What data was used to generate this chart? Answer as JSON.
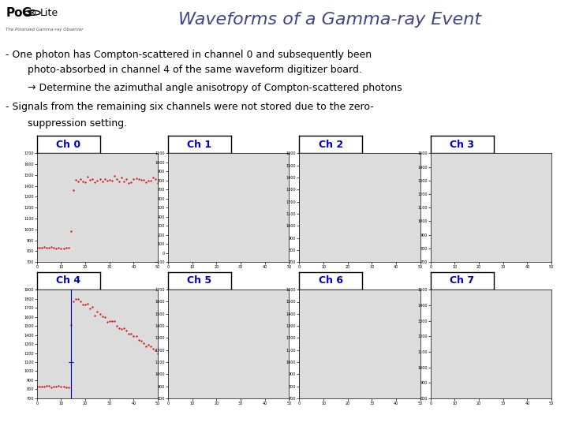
{
  "title": "Waveforms of a Gamma-ray Event",
  "text_lines": [
    [
      "- One photon has Compton-scattered in channel 0 and subsequently been",
      0.01
    ],
    [
      "photo-absorbed in channel 4 of the same waveform digitizer board.",
      0.04
    ],
    [
      "→ Determine the azimuthal angle anisotropy of Compton-scattered photons",
      0.07
    ],
    [
      "- Signals from the remaining six channels were not stored due to the zero-",
      0.1
    ],
    [
      "suppression setting.",
      0.13
    ]
  ],
  "channels": [
    "Ch 0",
    "Ch 1",
    "Ch 2",
    "Ch 3",
    "Ch 4",
    "Ch 5",
    "Ch 6",
    "Ch 7"
  ],
  "bg_color": "#ffffff",
  "plot_bg": "#dcdcdc",
  "label_color": "#0000bb",
  "waveform_color": "#cc0000",
  "trigger_color": "#0000bb",
  "title_color": "#444488"
}
